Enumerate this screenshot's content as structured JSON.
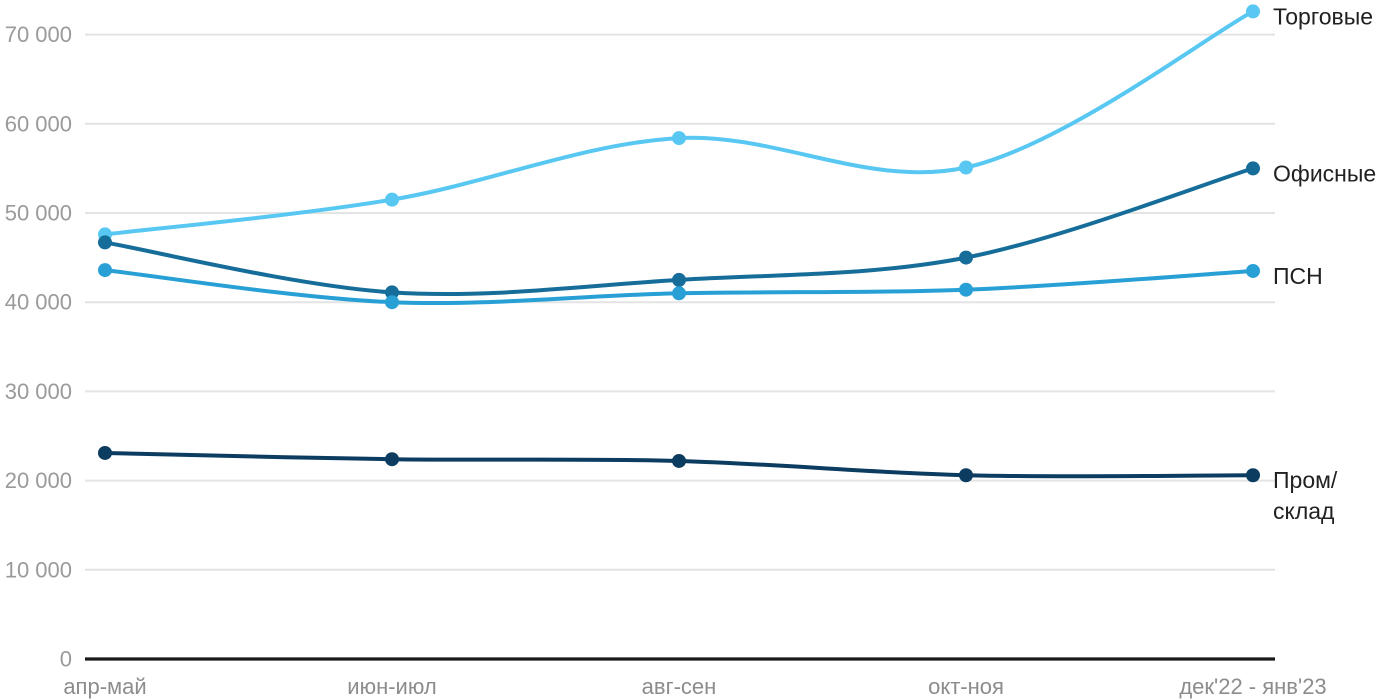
{
  "chart_data": {
    "type": "line",
    "title": "",
    "xlabel": "",
    "ylabel": "",
    "x_categories": [
      "апр-май",
      "июн-июл",
      "авг-сен",
      "окт-ноя",
      "дек'22 - янв'23"
    ],
    "y_ticks": {
      "values": [
        0,
        10000,
        20000,
        30000,
        40000,
        50000,
        60000,
        70000
      ],
      "labels": [
        "0",
        "10 000",
        "20 000",
        "30 000",
        "40 000",
        "50 000",
        "60 000",
        "70 000"
      ]
    },
    "ylim": [
      0,
      73000
    ],
    "grid": "horizontal-only",
    "legend_position": "right-edge-inline-labels",
    "series": [
      {
        "name": "Торговые",
        "label_lines": [
          "Торговые"
        ],
        "color": "#58C8F3",
        "values": [
          47600,
          51500,
          58400,
          55100,
          72600
        ]
      },
      {
        "name": "Офисные",
        "label_lines": [
          "Офисные"
        ],
        "color": "#176D99",
        "values": [
          46700,
          41100,
          42500,
          45000,
          55000
        ]
      },
      {
        "name": "ПСН",
        "label_lines": [
          "ПСН"
        ],
        "color": "#28A0D6",
        "values": [
          43600,
          40000,
          41000,
          41400,
          43500
        ]
      },
      {
        "name": "Пром/склад",
        "label_lines": [
          "Пром/",
          "склад"
        ],
        "color": "#0C3C60",
        "values": [
          23100,
          22400,
          22200,
          20600,
          20600
        ]
      }
    ],
    "colors": {
      "axis": "#1A1A1A",
      "gridline": "#E4E4E4",
      "y_tick_label": "#9A9A9A",
      "x_tick_label": "#8C8C8C",
      "series_label": "#212121",
      "background": "#FFFFFF"
    }
  }
}
